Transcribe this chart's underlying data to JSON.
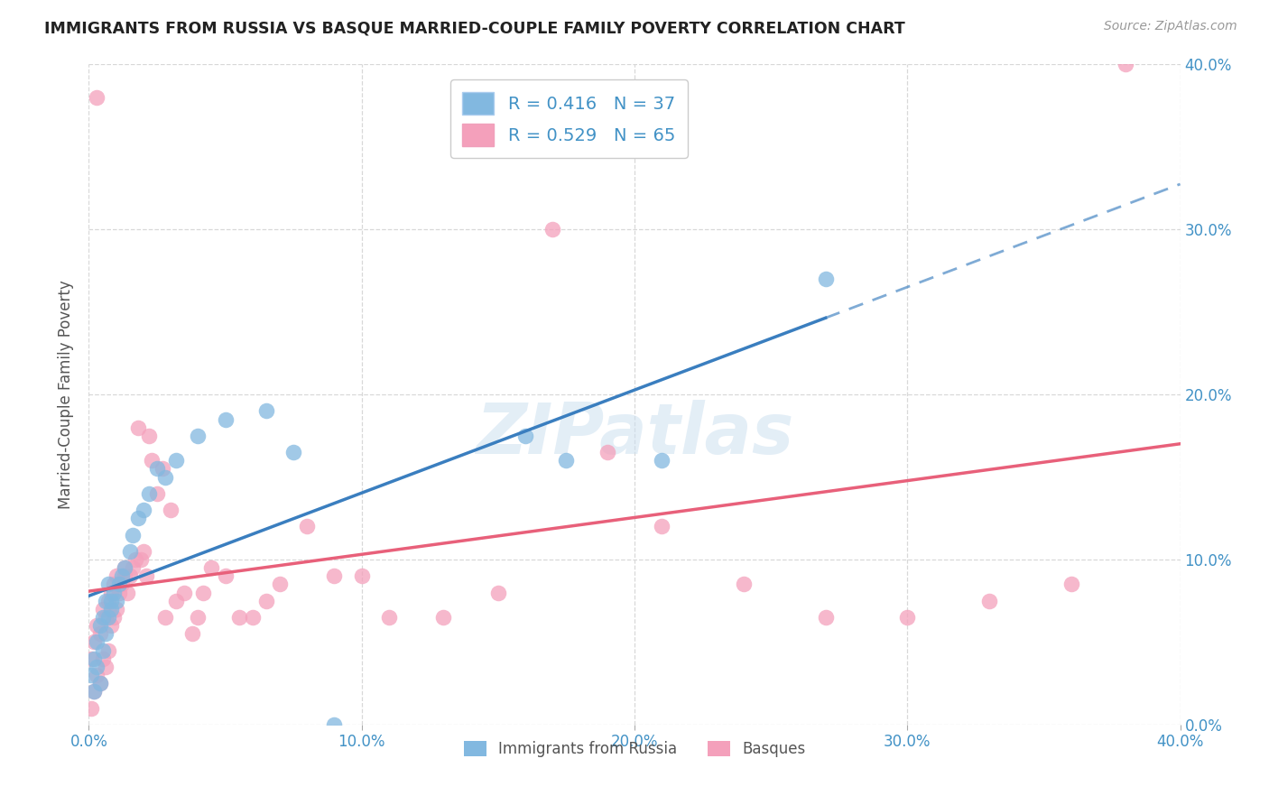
{
  "title": "IMMIGRANTS FROM RUSSIA VS BASQUE MARRIED-COUPLE FAMILY POVERTY CORRELATION CHART",
  "source": "Source: ZipAtlas.com",
  "ylabel": "Married-Couple Family Poverty",
  "xlim": [
    0.0,
    0.4
  ],
  "ylim": [
    0.0,
    0.4
  ],
  "legend_russia_R": "0.416",
  "legend_russia_N": "37",
  "legend_basque_R": "0.529",
  "legend_basque_N": "65",
  "legend_label_russia": "Immigrants from Russia",
  "legend_label_basque": "Basques",
  "watermark": "ZIPatlas",
  "color_russia": "#82b8e0",
  "color_basque": "#f4a0bb",
  "color_russia_line": "#3a7ebf",
  "color_basque_line": "#e8607a",
  "russia_x": [
    0.001,
    0.002,
    0.002,
    0.003,
    0.003,
    0.004,
    0.004,
    0.005,
    0.005,
    0.006,
    0.006,
    0.007,
    0.007,
    0.008,
    0.008,
    0.009,
    0.01,
    0.011,
    0.012,
    0.013,
    0.015,
    0.016,
    0.018,
    0.02,
    0.022,
    0.025,
    0.028,
    0.032,
    0.04,
    0.05,
    0.065,
    0.075,
    0.09,
    0.16,
    0.175,
    0.21,
    0.27
  ],
  "russia_y": [
    0.03,
    0.02,
    0.04,
    0.035,
    0.05,
    0.025,
    0.06,
    0.045,
    0.065,
    0.055,
    0.075,
    0.065,
    0.085,
    0.07,
    0.075,
    0.08,
    0.075,
    0.085,
    0.09,
    0.095,
    0.105,
    0.115,
    0.125,
    0.13,
    0.14,
    0.155,
    0.15,
    0.16,
    0.175,
    0.185,
    0.19,
    0.165,
    0.0,
    0.175,
    0.16,
    0.16,
    0.27
  ],
  "basque_x": [
    0.001,
    0.001,
    0.002,
    0.002,
    0.003,
    0.003,
    0.004,
    0.004,
    0.005,
    0.005,
    0.006,
    0.006,
    0.007,
    0.007,
    0.008,
    0.008,
    0.009,
    0.009,
    0.01,
    0.01,
    0.011,
    0.012,
    0.013,
    0.013,
    0.014,
    0.015,
    0.016,
    0.017,
    0.018,
    0.019,
    0.02,
    0.021,
    0.022,
    0.023,
    0.025,
    0.027,
    0.028,
    0.03,
    0.032,
    0.035,
    0.038,
    0.04,
    0.042,
    0.045,
    0.05,
    0.055,
    0.06,
    0.065,
    0.07,
    0.08,
    0.09,
    0.1,
    0.11,
    0.13,
    0.15,
    0.17,
    0.19,
    0.21,
    0.24,
    0.27,
    0.3,
    0.33,
    0.36,
    0.003,
    0.38
  ],
  "basque_y": [
    0.01,
    0.04,
    0.02,
    0.05,
    0.03,
    0.06,
    0.025,
    0.055,
    0.04,
    0.07,
    0.035,
    0.065,
    0.045,
    0.075,
    0.06,
    0.08,
    0.065,
    0.085,
    0.07,
    0.09,
    0.08,
    0.085,
    0.09,
    0.095,
    0.08,
    0.09,
    0.095,
    0.1,
    0.18,
    0.1,
    0.105,
    0.09,
    0.175,
    0.16,
    0.14,
    0.155,
    0.065,
    0.13,
    0.075,
    0.08,
    0.055,
    0.065,
    0.08,
    0.095,
    0.09,
    0.065,
    0.065,
    0.075,
    0.085,
    0.12,
    0.09,
    0.09,
    0.065,
    0.065,
    0.08,
    0.3,
    0.165,
    0.12,
    0.085,
    0.065,
    0.065,
    0.075,
    0.085,
    0.38,
    0.4
  ],
  "background_color": "#ffffff",
  "grid_color": "#d8d8d8"
}
